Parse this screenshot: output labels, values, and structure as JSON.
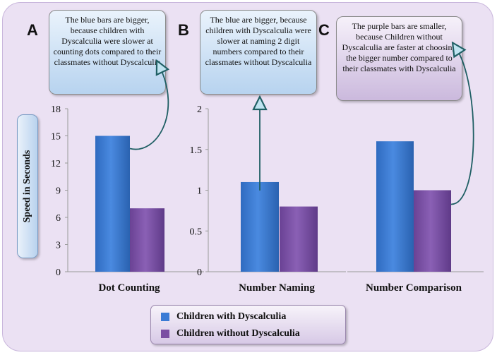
{
  "colors": {
    "series_with": "#3a7bd5",
    "series_without": "#7b4fa3",
    "connector": "#1f5f64",
    "frame_fill": "#ebe1f3"
  },
  "panels": [
    {
      "letter": "A",
      "callout": "The blue bars are bigger, because children with Dyscalculia were slower at counting dots compared to their classmates without Dyscalculia"
    },
    {
      "letter": "B",
      "callout": "The blue are bigger, because children with Dyscalculia were slower at naming 2 digit numbers compared to their classmates without Dyscalculia"
    },
    {
      "letter": "C",
      "callout": "The purple bars are smaller, because Children without Dyscalculia are faster at choosing the bigger number compared to their classmates with Dyscalculia"
    }
  ],
  "y_axis_label": "Speed in Seconds",
  "chart_data": [
    {
      "type": "bar",
      "panel": "A",
      "categories": [
        "Dot Counting"
      ],
      "series": [
        {
          "name": "Children with Dyscalculia",
          "values": [
            15
          ]
        },
        {
          "name": "Children without Dyscalculia",
          "values": [
            7
          ]
        }
      ],
      "ylim": [
        0,
        18
      ],
      "yticks": [
        "0",
        "3",
        "6",
        "9",
        "12",
        "15",
        "18"
      ],
      "ylabel": "Speed in Seconds",
      "xlabel": ""
    },
    {
      "type": "bar",
      "panel": "B",
      "categories": [
        "Number Naming"
      ],
      "series": [
        {
          "name": "Children with Dyscalculia",
          "values": [
            1.1
          ]
        },
        {
          "name": "Children without Dyscalculia",
          "values": [
            0.8
          ]
        }
      ],
      "ylim": [
        0,
        2
      ],
      "yticks": [
        "0",
        "0.5",
        "1",
        "1.5",
        "2"
      ],
      "xlabel": ""
    },
    {
      "type": "bar",
      "panel": "C",
      "categories": [
        "Number Comparison"
      ],
      "series": [
        {
          "name": "Children with Dyscalculia",
          "values": [
            1.6
          ]
        },
        {
          "name": "Children without Dyscalculia",
          "values": [
            1.0
          ]
        }
      ],
      "ylim": [
        0,
        2
      ],
      "yticks": [],
      "xlabel": ""
    }
  ],
  "legend": [
    {
      "label": "Children with Dyscalculia"
    },
    {
      "label": "Children without Dyscalculia"
    }
  ]
}
